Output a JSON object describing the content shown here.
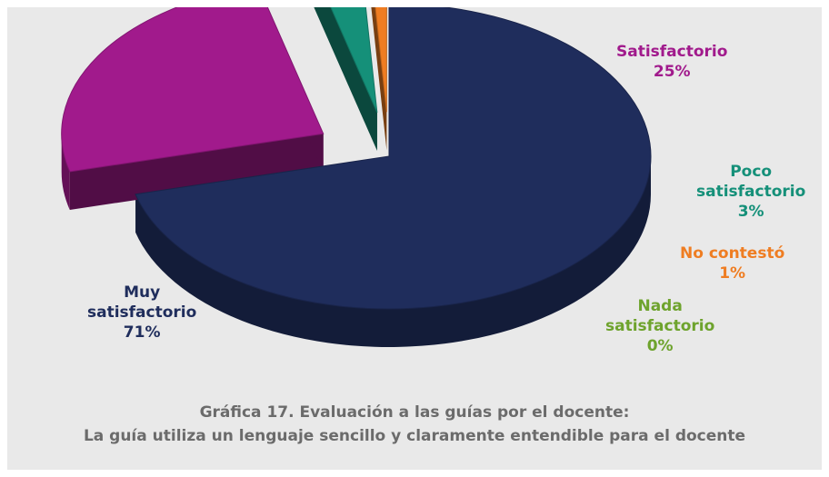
{
  "chart_data": {
    "type": "pie",
    "title": "Gráfica 17. Evaluación a las guías por el docente:",
    "subtitle": "La guía utiliza un lenguaje sencillo y claramente entendible para el docente",
    "slices": [
      {
        "label": "Muy satisfactorio",
        "value": 71,
        "value_label": "71%",
        "color": "#1f2d5c"
      },
      {
        "label": "Satisfactorio",
        "value": 25,
        "value_label": "25%",
        "color": "#a11a8c"
      },
      {
        "label": "Poco satisfactorio",
        "value": 3,
        "value_label": "3%",
        "color": "#159079"
      },
      {
        "label": "No contestó",
        "value": 1,
        "value_label": "1%",
        "color": "#ef7d22"
      },
      {
        "label": "Nada satisfactorio",
        "value": 0,
        "value_label": "0%",
        "color": "#6ea32d"
      }
    ],
    "legend": "none",
    "style": "3d-exploded"
  }
}
